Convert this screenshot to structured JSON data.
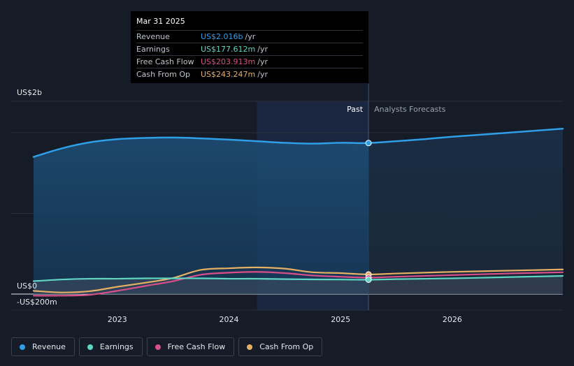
{
  "tooltip": {
    "date": "Mar 31 2025",
    "rows": [
      {
        "label": "Revenue",
        "value": "US$2.016b",
        "unit": "/yr"
      },
      {
        "label": "Earnings",
        "value": "US$177.612m",
        "unit": "/yr"
      },
      {
        "label": "Free Cash Flow",
        "value": "US$203.913m",
        "unit": "/yr"
      },
      {
        "label": "Cash From Op",
        "value": "US$243.247m",
        "unit": "/yr"
      }
    ]
  },
  "colors": {
    "revenue": "#2f9fe8",
    "earnings": "#5fd6c4",
    "free_cash_flow": "#d94f8a",
    "cash_from_op": "#e6b064"
  },
  "chart_data": {
    "type": "line",
    "ylabels": {
      "top": "US$2b",
      "zero": "US$0",
      "bottom": "-US$200m"
    },
    "ylim": [
      -200,
      2400
    ],
    "xlim": [
      2022.25,
      2026.99
    ],
    "xticks": [
      2023,
      2024,
      2025,
      2026
    ],
    "xtick_labels": [
      "2023",
      "2024",
      "2025",
      "2026"
    ],
    "past_label": "Past",
    "forecast_label": "Analysts Forecasts",
    "past_start": 2024.25,
    "divider_x": 2025.25,
    "series": [
      {
        "name": "Revenue",
        "key": "revenue",
        "x": [
          2022.25,
          2022.5,
          2022.75,
          2023.0,
          2023.25,
          2023.5,
          2023.75,
          2024.0,
          2024.25,
          2024.5,
          2024.75,
          2025.0,
          2025.25,
          2025.5,
          2025.75,
          2026.0,
          2026.5,
          2026.99
        ],
        "values": [
          1700,
          1805,
          1880,
          1920,
          1935,
          1940,
          1930,
          1915,
          1895,
          1875,
          1865,
          1875,
          2016,
          1895,
          1920,
          1950,
          2000,
          2050
        ]
      },
      {
        "name": "Earnings",
        "key": "earnings",
        "x": [
          2022.25,
          2022.5,
          2022.75,
          2023.0,
          2023.25,
          2023.5,
          2023.75,
          2024.0,
          2024.25,
          2024.5,
          2024.75,
          2025.0,
          2025.25,
          2025.5,
          2026.0,
          2026.5,
          2026.99
        ],
        "values": [
          160,
          180,
          190,
          190,
          195,
          195,
          195,
          190,
          190,
          185,
          182,
          180,
          177.6,
          185,
          195,
          210,
          225
        ]
      },
      {
        "name": "Free Cash Flow",
        "key": "free_cash_flow",
        "x": [
          2022.25,
          2022.5,
          2022.75,
          2023.0,
          2023.25,
          2023.5,
          2023.75,
          2024.0,
          2024.25,
          2024.5,
          2024.75,
          2025.0,
          2025.25,
          2025.5,
          2026.0,
          2026.5,
          2026.99
        ],
        "values": [
          -20,
          -20,
          -10,
          40,
          100,
          160,
          240,
          265,
          275,
          260,
          230,
          215,
          203.9,
          215,
          235,
          255,
          270
        ]
      },
      {
        "name": "Cash From Op",
        "key": "cash_from_op",
        "x": [
          2022.25,
          2022.5,
          2022.75,
          2023.0,
          2023.25,
          2023.5,
          2023.75,
          2024.0,
          2024.25,
          2024.5,
          2024.75,
          2025.0,
          2025.25,
          2025.5,
          2026.0,
          2026.5,
          2026.99
        ],
        "values": [
          40,
          20,
          35,
          90,
          140,
          200,
          300,
          320,
          330,
          315,
          270,
          260,
          243.2,
          255,
          275,
          290,
          305
        ]
      }
    ]
  },
  "legend": [
    {
      "label": "Revenue",
      "key": "revenue"
    },
    {
      "label": "Earnings",
      "key": "earnings"
    },
    {
      "label": "Free Cash Flow",
      "key": "free_cash_flow"
    },
    {
      "label": "Cash From Op",
      "key": "cash_from_op"
    }
  ]
}
